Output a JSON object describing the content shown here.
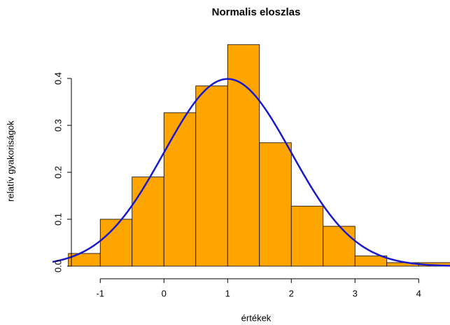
{
  "chart_data": {
    "type": "histogram",
    "title": "Normalis eloszlas",
    "xlabel": "értékek",
    "ylabel": "relatív gyakoriságok",
    "bins": [
      -1.5,
      -1,
      -0.5,
      0,
      0.5,
      1,
      1.5,
      2,
      2.5,
      3,
      3.5,
      4,
      4.5
    ],
    "values": [
      0.027,
      0.1,
      0.19,
      0.327,
      0.384,
      0.472,
      0.263,
      0.128,
      0.085,
      0.022,
      0.0075,
      0.0075
    ],
    "color": "#ffa500",
    "curve": {
      "mean": 1,
      "sd": 1,
      "color": "#1a1acc"
    },
    "xlim": [
      -1.75,
      4.5
    ],
    "ylim": [
      0,
      0.48
    ],
    "xticks": [
      -1,
      0,
      1,
      2,
      3,
      4
    ],
    "yticks": [
      {
        "value": 0,
        "label": "0.0"
      },
      0.1,
      0.2,
      0.3,
      0.4
    ]
  }
}
